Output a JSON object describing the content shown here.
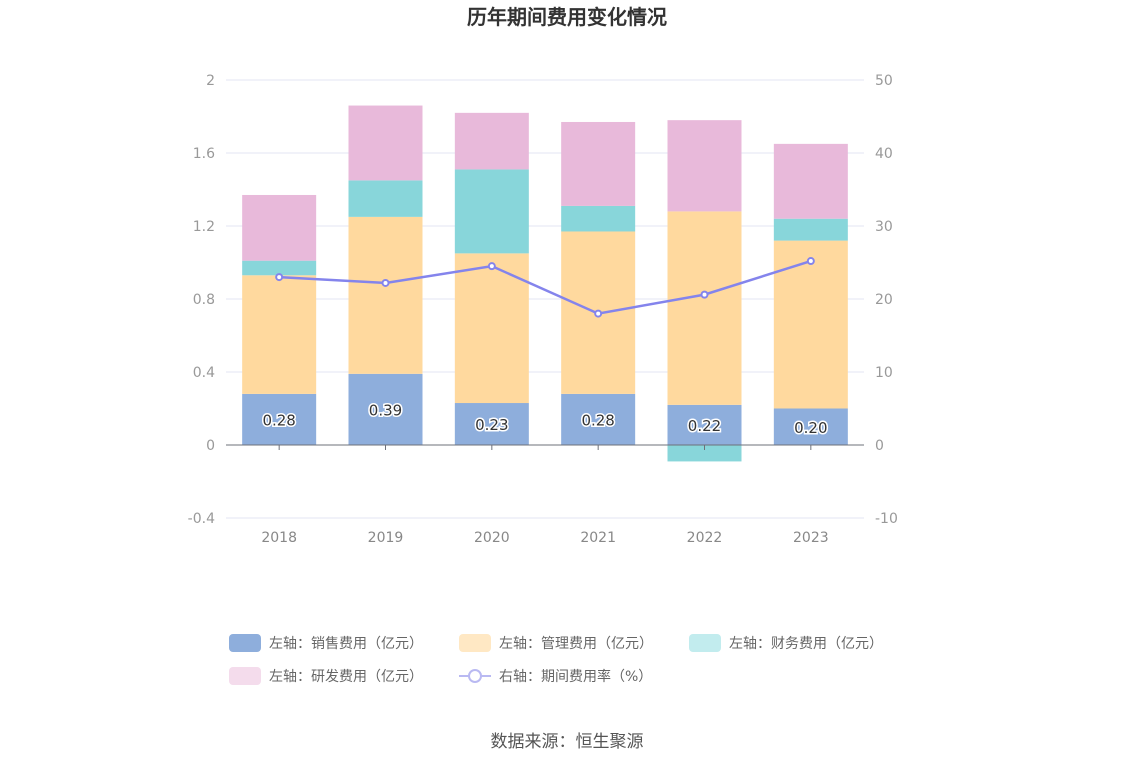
{
  "chart_data": {
    "type": "bar",
    "title": "历年期间费用变化情况",
    "categories": [
      "2018",
      "2019",
      "2020",
      "2021",
      "2022",
      "2023"
    ],
    "stacked": true,
    "left_axis": {
      "min": -0.4,
      "max": 2,
      "ticks": [
        "-0.4",
        "0",
        "0.4",
        "0.8",
        "1.2",
        "1.6",
        "2"
      ]
    },
    "right_axis": {
      "min": -10,
      "max": 50,
      "ticks": [
        "-10",
        "0",
        "10",
        "20",
        "30",
        "40",
        "50"
      ]
    },
    "series": [
      {
        "name": "左轴：销售费用（亿元）",
        "type": "bar",
        "axis": "left",
        "color": "#8eaedc",
        "values": [
          0.28,
          0.39,
          0.23,
          0.28,
          0.22,
          0.2
        ],
        "labels": [
          "0.28",
          "0.39",
          "0.23",
          "0.28",
          "0.22",
          "0.20"
        ]
      },
      {
        "name": "左轴：管理费用（亿元）",
        "type": "bar",
        "axis": "left",
        "color": "#ffd99e",
        "values": [
          0.65,
          0.86,
          0.82,
          0.89,
          1.06,
          0.92
        ]
      },
      {
        "name": "左轴：财务费用（亿元）",
        "type": "bar",
        "axis": "left",
        "color": "#88d6da",
        "values": [
          0.08,
          0.2,
          0.46,
          0.14,
          -0.09,
          0.12
        ]
      },
      {
        "name": "左轴：研发费用（亿元）",
        "type": "bar",
        "axis": "left",
        "color": "#e8b9da",
        "values": [
          0.36,
          0.41,
          0.31,
          0.46,
          0.5,
          0.41
        ]
      },
      {
        "name": "右轴：期间费用率（%）",
        "type": "line",
        "axis": "right",
        "color": "#8484ec",
        "values": [
          23.0,
          22.2,
          24.5,
          18.0,
          20.6,
          25.2
        ]
      }
    ],
    "legend_position": "bottom",
    "grid": true
  },
  "source_text": "数据来源：恒生聚源"
}
